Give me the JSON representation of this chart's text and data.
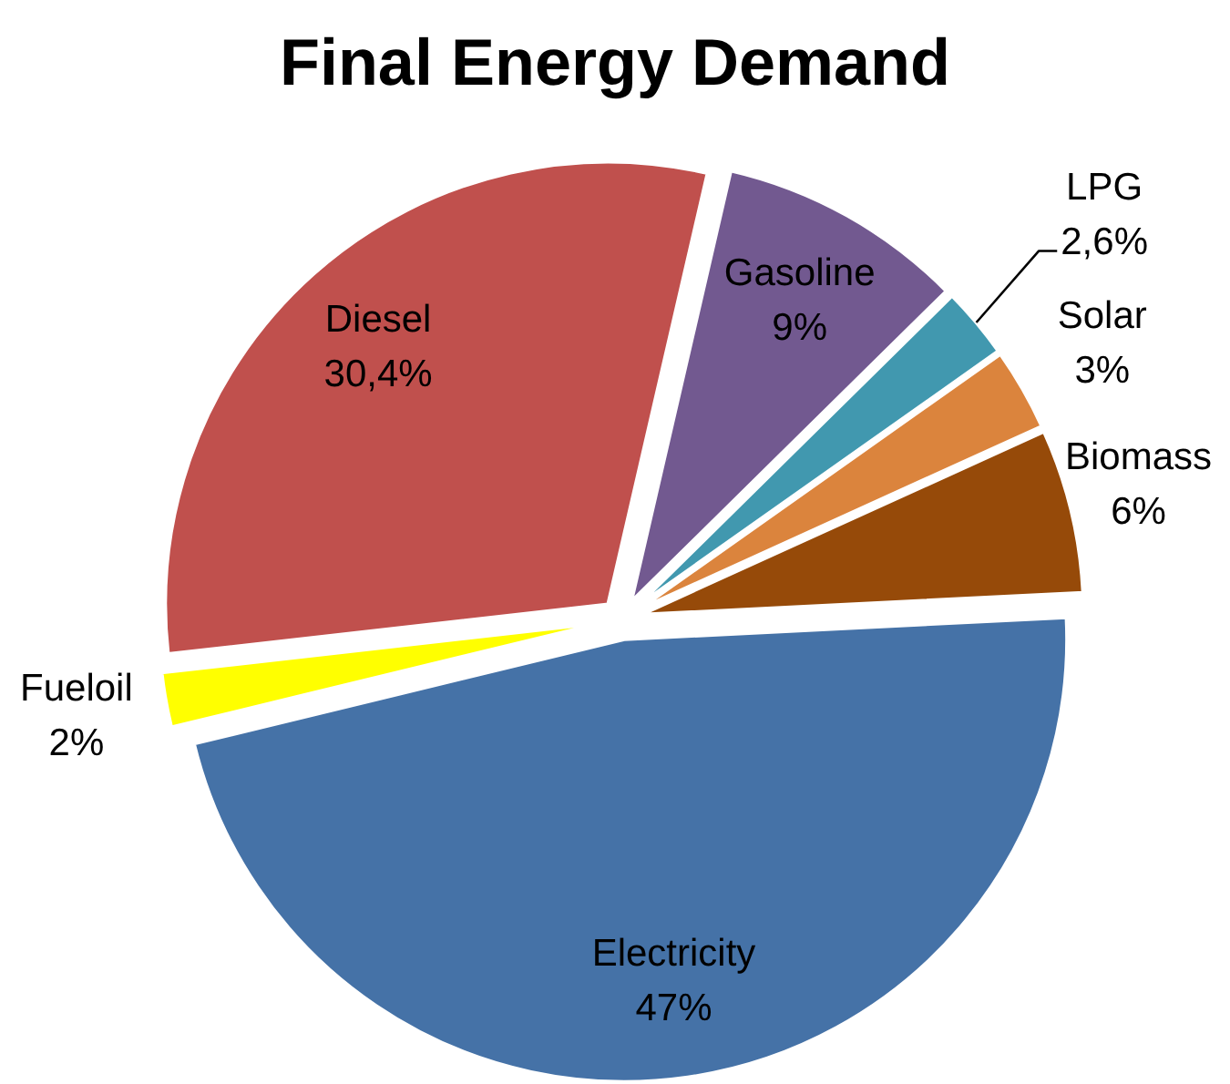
{
  "chart_data": {
    "type": "pie",
    "title": "Final Energy Demand",
    "categories": [
      "Gasoline",
      "LPG",
      "Solar",
      "Biomass",
      "Electricity",
      "Fueloil",
      "Diesel"
    ],
    "values": [
      9,
      2.6,
      3,
      6,
      47,
      2,
      30.4
    ],
    "value_labels": [
      "9%",
      "2,6%",
      "3%",
      "6%",
      "47%",
      "2%",
      "30,4%"
    ],
    "colors": [
      "#725990",
      "#4198af",
      "#db843d",
      "#964a09",
      "#4572a7",
      "#ffff00",
      "#c0504d"
    ]
  }
}
